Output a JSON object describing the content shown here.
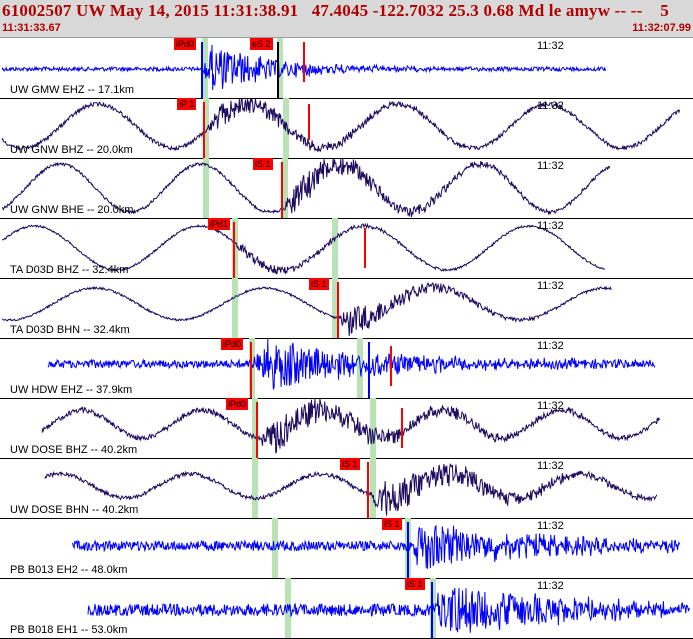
{
  "header": {
    "event_title": "61002507 UW May 14, 2015 11:31:38.91   47.4045 -122.7032 25.3 0.68 Md le amyw -- --    5",
    "time_start": "11:31:33.67",
    "time_end": "11:32:07.99"
  },
  "colors": {
    "header_bg": "#d9d9d9",
    "header_text": "#b00000",
    "pick_box": "#ff0000",
    "theoretical_window": "#b9e3b4",
    "trace_short_period": "#0000ff",
    "trace_broadband": "#1c0a5e"
  },
  "traces": [
    {
      "label": "UW GMW EHZ -- 17.1km",
      "minute": "11:32",
      "color": "#0000ff",
      "picks": [
        {
          "text": "iPd0",
          "color": "#0000ff"
        },
        {
          "text": "eS 2",
          "color": "#000000"
        }
      ]
    },
    {
      "label": "UW GNW BHZ -- 20.0km",
      "minute": "11:32",
      "color": "#1c0a5e",
      "picks": [
        {
          "text": "iP 1",
          "color": "#000000"
        }
      ]
    },
    {
      "label": "UW GNW BHE -- 20.0km",
      "minute": "11:32",
      "color": "#1c0a5e",
      "picks": [
        {
          "text": "iS 1",
          "color": "#000000"
        }
      ]
    },
    {
      "label": "TA D03D BHZ -- 32.4km",
      "minute": "11:32",
      "color": "#1c0a5e",
      "picks": [
        {
          "text": "iPd1",
          "color": "#000000"
        }
      ]
    },
    {
      "label": "TA D03D BHN -- 32.4km",
      "minute": "11:32",
      "color": "#1c0a5e",
      "picks": [
        {
          "text": "iS 1",
          "color": "#000000"
        }
      ]
    },
    {
      "label": "UW HDW EHZ -- 37.9km",
      "minute": "11:32",
      "color": "#0000ff",
      "picks": [
        {
          "text": "iPd0",
          "color": "#000000"
        }
      ]
    },
    {
      "label": "UW DOSE BHZ -- 40.2km",
      "minute": "11:32",
      "color": "#1c0a5e",
      "picks": [
        {
          "text": "iPd0",
          "color": "#000000"
        }
      ]
    },
    {
      "label": "UW DOSE BHN -- 40.2km",
      "minute": "11:32",
      "color": "#1c0a5e",
      "picks": [
        {
          "text": "iS 1",
          "color": "#000000"
        }
      ]
    },
    {
      "label": "PB B013 EH2 -- 48.0km",
      "minute": "11:32",
      "color": "#0000ff",
      "picks": [
        {
          "text": "iS 1",
          "color": "#000000"
        }
      ]
    },
    {
      "label": "PB B018 EH1 -- 53.0km",
      "minute": "11:32",
      "color": "#0000ff",
      "picks": [
        {
          "text": "iS 1",
          "color": "#000000"
        }
      ]
    }
  ]
}
